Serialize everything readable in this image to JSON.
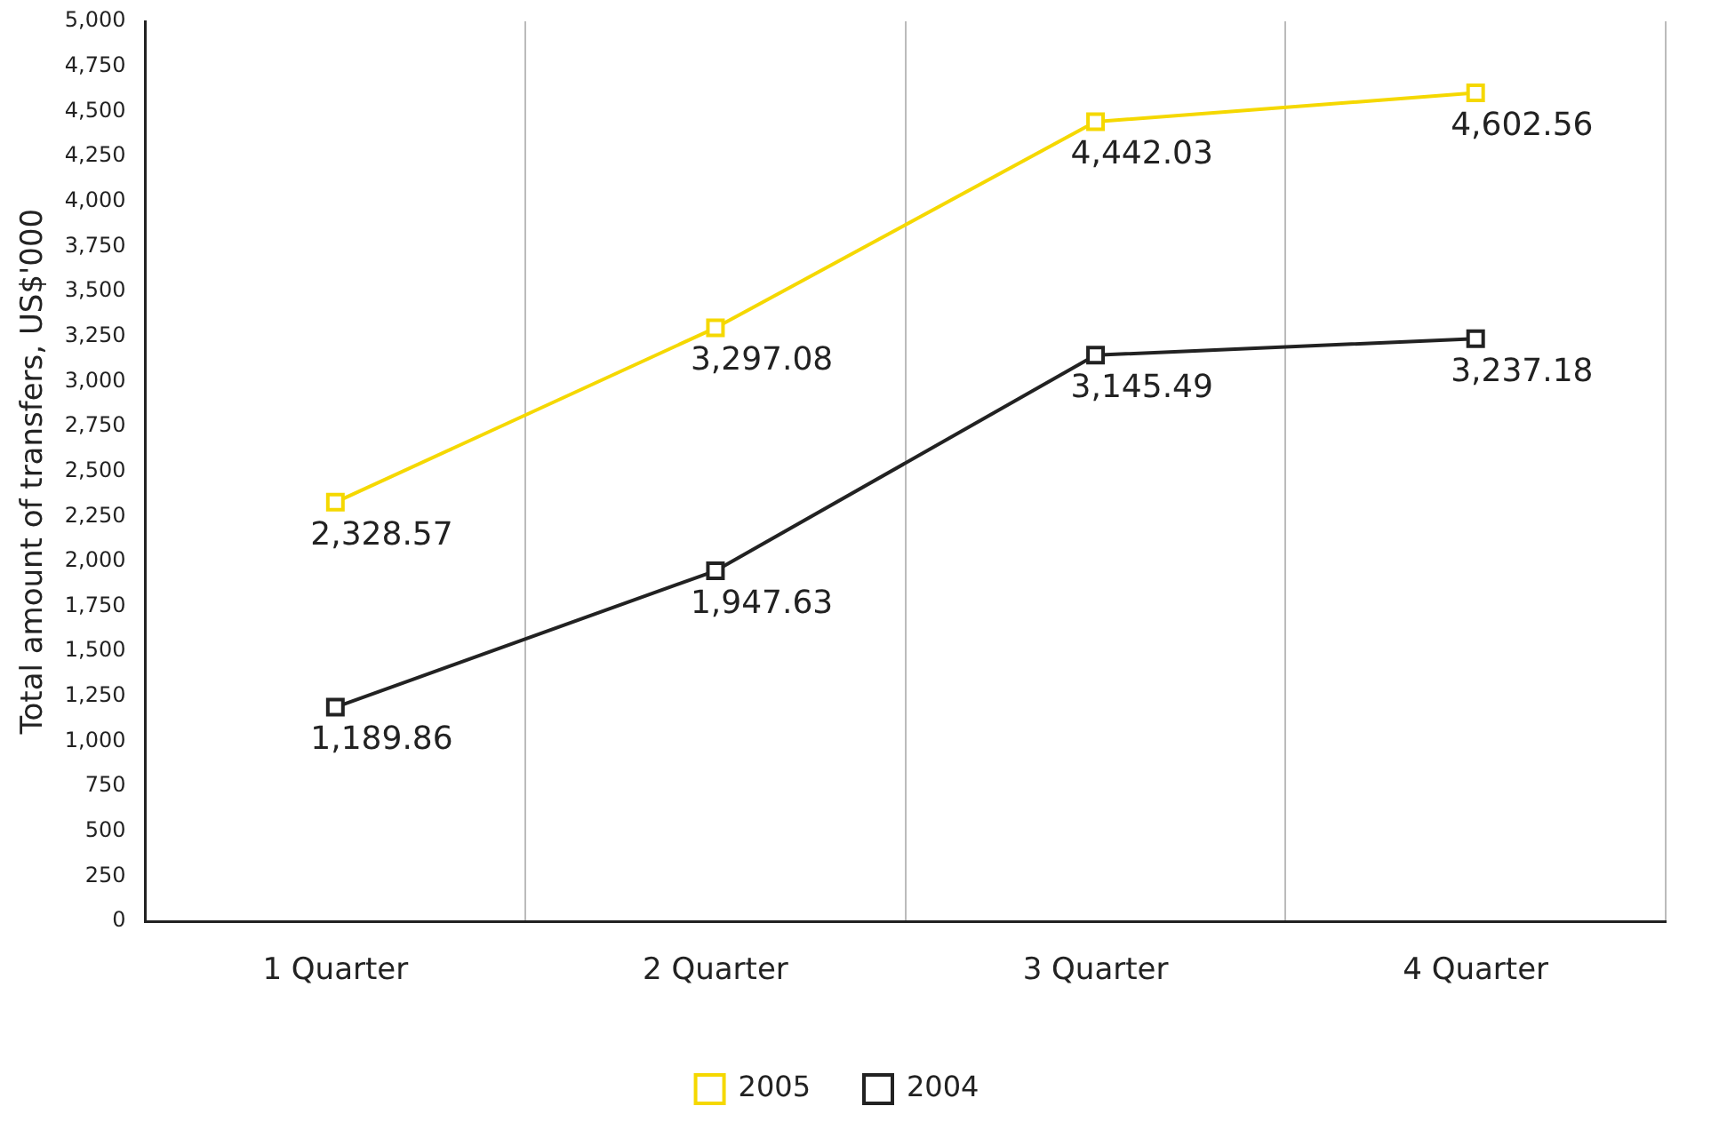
{
  "chart_data": {
    "type": "line",
    "ylabel": "Total amount of transfers, US$'000",
    "categories": [
      "1 Quarter",
      "2 Quarter",
      "3 Quarter",
      "4 Quarter"
    ],
    "series": [
      {
        "name": "2005",
        "color": "#f5d800",
        "values": [
          2328.57,
          3297.08,
          4442.03,
          4602.56
        ],
        "value_labels": [
          "2,328.57",
          "3,297.08",
          "4,442.03",
          "4,602.56"
        ]
      },
      {
        "name": "2004",
        "color": "#222222",
        "values": [
          1189.86,
          1947.63,
          3145.49,
          3237.18
        ],
        "value_labels": [
          "1,189.86",
          "1,947.63",
          "3,145.49",
          "3,237.18"
        ]
      }
    ],
    "ylim": [
      0,
      5000
    ],
    "yticks": [
      0,
      250,
      500,
      750,
      {
        "value": 1000,
        "label": "1,000"
      },
      {
        "value": 1250,
        "label": "1,250"
      },
      {
        "value": 1500,
        "label": "1,500"
      },
      {
        "value": 1750,
        "label": "1,750"
      },
      {
        "value": 2000,
        "label": "2,000"
      },
      {
        "value": 2250,
        "label": "2,250"
      },
      {
        "value": 2500,
        "label": "2,500"
      },
      {
        "value": 2750,
        "label": "2,750"
      },
      {
        "value": 3000,
        "label": "3,000"
      },
      {
        "value": 3250,
        "label": "3,250"
      },
      {
        "value": 3500,
        "label": "3,500"
      },
      {
        "value": 3750,
        "label": "3,750"
      },
      {
        "value": 4000,
        "label": "4,000"
      },
      {
        "value": 4250,
        "label": "4,250"
      },
      {
        "value": 4500,
        "label": "4,500"
      },
      {
        "value": 4750,
        "label": "4,750"
      },
      {
        "value": 5000,
        "label": "5,000"
      }
    ],
    "grid": "x",
    "legend": "bottom",
    "marker": "square",
    "line_style": "solid"
  }
}
